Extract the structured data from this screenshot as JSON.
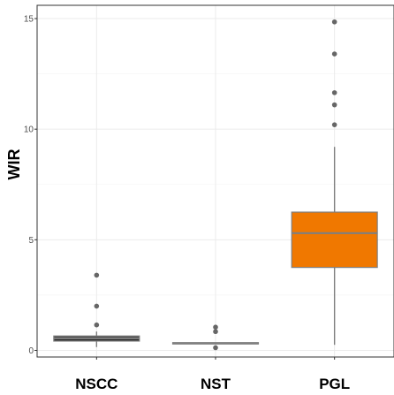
{
  "chart_data": {
    "type": "box",
    "title": "",
    "xlabel": "",
    "ylabel": "WIR",
    "ylim": [
      -0.3,
      15.6
    ],
    "yticks": [
      0,
      5,
      10,
      15
    ],
    "ytick_labels": [
      "0",
      "5",
      "10",
      "15"
    ],
    "grid": true,
    "legend": "none",
    "categories": [
      "NSCC",
      "NST",
      "PGL"
    ],
    "boxes": [
      {
        "category": "NSCC",
        "whisker_low": 0.15,
        "q1": 0.42,
        "median": 0.55,
        "q3": 0.65,
        "whisker_high": 0.85,
        "outliers": [
          3.4,
          2.0,
          1.15
        ],
        "fill": "#2a2a2a"
      },
      {
        "category": "NST",
        "whisker_low": 0.3,
        "q1": 0.3,
        "median": 0.32,
        "q3": 0.35,
        "whisker_high": 0.35,
        "outliers": [
          1.05,
          0.85,
          0.12
        ],
        "fill": "#555555"
      },
      {
        "category": "PGL",
        "whisker_low": 0.25,
        "q1": 3.75,
        "median": 5.3,
        "q3": 6.25,
        "whisker_high": 9.2,
        "outliers": [
          14.85,
          13.4,
          11.65,
          11.1,
          10.2
        ],
        "fill": "#f07800"
      }
    ]
  },
  "colors": {
    "panel_border": "#333333",
    "grid": "#ebebeb",
    "box_line": "#7f7f7f",
    "outlier": "#666666"
  }
}
